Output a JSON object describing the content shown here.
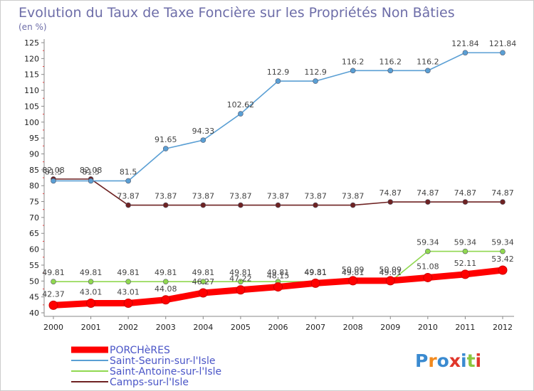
{
  "chart_data": {
    "type": "line",
    "title": "Evolution du Taux de Taxe Foncière sur les Propriétés Non Bâties",
    "subtitle": "(en %)",
    "categories": [
      "2000",
      "2001",
      "2002",
      "2003",
      "2004",
      "2005",
      "2006",
      "2007",
      "2008",
      "2009",
      "2010",
      "2011",
      "2012"
    ],
    "ylim": [
      40,
      125
    ],
    "yticks": [
      40,
      45,
      50,
      55,
      60,
      65,
      70,
      75,
      80,
      85,
      90,
      95,
      100,
      105,
      110,
      115,
      120,
      125
    ],
    "grid": false,
    "legend_position": "bottom-left",
    "series": [
      {
        "name": "PORCHèRES",
        "color": "#ff0000",
        "values": [
          42.37,
          43.01,
          43.01,
          44.08,
          46.27,
          47.22,
          48.15,
          49.31,
          50.09,
          50.09,
          51.08,
          52.11,
          53.42
        ],
        "labels": [
          "42.37",
          "43.01",
          "43.01",
          "44.08",
          "46.27",
          "47.22",
          "48.15",
          "49.31",
          "50.09",
          "50.09",
          "51.08",
          "52.11",
          "53.42"
        ]
      },
      {
        "name": "Saint-Seurin-sur-l'Isle",
        "color": "#5a9fd4",
        "values": [
          81.5,
          81.5,
          81.5,
          91.65,
          94.33,
          102.62,
          112.9,
          112.9,
          116.2,
          116.2,
          116.2,
          121.84,
          121.84
        ],
        "labels": [
          "81.5",
          "81.5",
          "81.5",
          "91.65",
          "94.33",
          "102.62",
          "112.9",
          "112.9",
          "116.2",
          "116.2",
          "116.2",
          "121.84",
          "121.84"
        ]
      },
      {
        "name": "Saint-Antoine-sur-l'Isle",
        "color": "#90d850",
        "values": [
          49.81,
          49.81,
          49.81,
          49.81,
          49.81,
          49.81,
          49.81,
          49.81,
          49.81,
          49.81,
          59.34,
          59.34,
          59.34
        ],
        "labels": [
          "49.81",
          "49.81",
          "49.81",
          "49.81",
          "49.81",
          "49.81",
          "49.81",
          "49.81",
          "49.81",
          "49.81",
          "59.34",
          "59.34",
          "59.34"
        ]
      },
      {
        "name": "Camps-sur-l'Isle",
        "color": "#6e2222",
        "values": [
          82.08,
          82.08,
          73.87,
          73.87,
          73.87,
          73.87,
          73.87,
          73.87,
          73.87,
          74.87,
          74.87,
          74.87,
          74.87
        ],
        "labels": [
          "82.08",
          "82.08",
          "73.87",
          "73.87",
          "73.87",
          "73.87",
          "73.87",
          "73.87",
          "73.87",
          "74.87",
          "74.87",
          "74.87",
          "74.87"
        ]
      }
    ]
  },
  "brand": {
    "logo_text": "Proxiti",
    "colors": [
      "#3a8ad0",
      "#f28a1e",
      "#3a8ad0",
      "#e0362b",
      "#3a8ad0",
      "#8cc63f",
      "#e0362b"
    ]
  }
}
